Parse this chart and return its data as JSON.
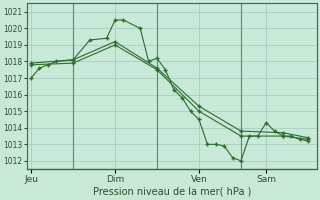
{
  "title": "Pression niveau de la mer( hPa )",
  "bg_color": "#c8e8d8",
  "grid_color": "#a0c8b8",
  "line_color": "#2d6b2d",
  "marker_color": "#2d6b2d",
  "ylim": [
    1011.5,
    1021.5
  ],
  "yticks": [
    1012,
    1013,
    1014,
    1015,
    1016,
    1017,
    1018,
    1019,
    1020,
    1021
  ],
  "xtick_labels": [
    "Jeu",
    "Dim",
    "Ven",
    "Sam"
  ],
  "xtick_positions": [
    0,
    10,
    20,
    28
  ],
  "vline_positions": [
    5,
    15,
    25
  ],
  "xlim": [
    -0.5,
    34
  ],
  "series1": {
    "x": [
      0,
      1,
      2,
      3,
      5,
      7,
      9,
      10,
      11,
      13,
      14,
      15,
      16,
      17,
      18,
      19,
      20,
      21,
      22,
      23,
      24,
      25,
      26,
      27,
      28,
      29,
      30,
      31,
      32,
      33
    ],
    "y": [
      1017.0,
      1017.6,
      1017.8,
      1018.0,
      1018.1,
      1019.3,
      1019.4,
      1020.5,
      1020.5,
      1020.0,
      1018.0,
      1018.2,
      1017.5,
      1016.3,
      1015.8,
      1015.0,
      1014.5,
      1013.0,
      1013.0,
      1012.9,
      1012.2,
      1012.0,
      1013.5,
      1013.5,
      1014.3,
      1013.8,
      1013.5,
      1013.5,
      1013.3,
      1013.2
    ]
  },
  "series2": {
    "x": [
      0,
      5,
      10,
      15,
      20,
      25,
      30,
      33
    ],
    "y": [
      1017.9,
      1018.1,
      1019.2,
      1017.6,
      1015.3,
      1013.8,
      1013.7,
      1013.4
    ]
  },
  "series3": {
    "x": [
      0,
      5,
      10,
      15,
      20,
      25,
      30,
      33
    ],
    "y": [
      1017.8,
      1017.9,
      1019.0,
      1017.5,
      1015.0,
      1013.5,
      1013.5,
      1013.3
    ]
  }
}
